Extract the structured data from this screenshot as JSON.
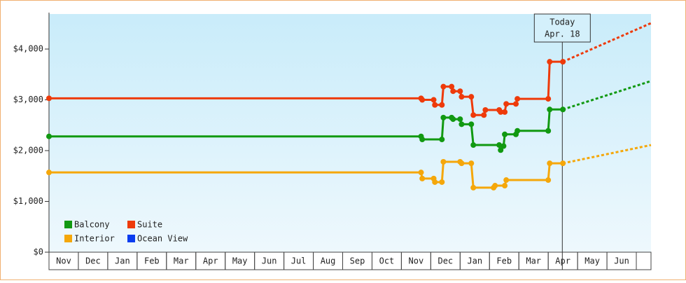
{
  "chart_data": {
    "type": "line",
    "ylim": [
      0,
      4690
    ],
    "yticks": [
      {
        "value": 0,
        "label": "$0"
      },
      {
        "value": 1000,
        "label": "$1,000"
      },
      {
        "value": 2000,
        "label": "$2,000"
      },
      {
        "value": 3000,
        "label": "$3,000"
      },
      {
        "value": 4000,
        "label": "$4,000"
      }
    ],
    "xlim": [
      0,
      20.5
    ],
    "xticks": [
      {
        "value": 0.5,
        "label": "Nov"
      },
      {
        "value": 1.5,
        "label": "Dec"
      },
      {
        "value": 2.5,
        "label": "Jan"
      },
      {
        "value": 3.5,
        "label": "Feb"
      },
      {
        "value": 4.5,
        "label": "Mar"
      },
      {
        "value": 5.5,
        "label": "Apr"
      },
      {
        "value": 6.5,
        "label": "May"
      },
      {
        "value": 7.5,
        "label": "Jun"
      },
      {
        "value": 8.5,
        "label": "Jul"
      },
      {
        "value": 9.5,
        "label": "Aug"
      },
      {
        "value": 10.5,
        "label": "Sep"
      },
      {
        "value": 11.5,
        "label": "Oct"
      },
      {
        "value": 12.5,
        "label": "Nov"
      },
      {
        "value": 13.5,
        "label": "Dec"
      },
      {
        "value": 14.5,
        "label": "Jan"
      },
      {
        "value": 15.5,
        "label": "Feb"
      },
      {
        "value": 16.5,
        "label": "Mar"
      },
      {
        "value": 17.5,
        "label": "Apr"
      },
      {
        "value": 18.5,
        "label": "May"
      },
      {
        "value": 19.5,
        "label": "Jun"
      }
    ],
    "annotation": {
      "lines": [
        "Today",
        "Apr. 18"
      ],
      "x": 17.48
    },
    "legend": "lower-left",
    "series": [
      {
        "name": "Balcony",
        "color": "#119911",
        "x": [
          0,
          12.67,
          12.71,
          13.38,
          13.43,
          13.71,
          13.76,
          14.0,
          14.05,
          14.38,
          14.45,
          15.33,
          15.38,
          15.48,
          15.52,
          15.9,
          15.95,
          17.0,
          17.05,
          17.5
        ],
        "values": [
          2280,
          2280,
          2220,
          2220,
          2650,
          2650,
          2620,
          2620,
          2520,
          2520,
          2110,
          2110,
          2010,
          2090,
          2320,
          2320,
          2390,
          2390,
          2810,
          2810
        ],
        "forecast": {
          "x": [
            17.5,
            20.5
          ],
          "values": [
            2810,
            3370
          ]
        }
      },
      {
        "name": "Suite",
        "color": "#ee3a0a",
        "x": [
          0,
          12.67,
          12.71,
          13.1,
          13.14,
          13.38,
          13.43,
          13.71,
          13.76,
          14.0,
          14.05,
          14.38,
          14.45,
          14.81,
          14.86,
          15.33,
          15.38,
          15.52,
          15.57,
          15.9,
          15.95,
          17.0,
          17.05,
          17.5
        ],
        "values": [
          3030,
          3030,
          3000,
          3000,
          2900,
          2900,
          3260,
          3260,
          3170,
          3170,
          3060,
          3060,
          2700,
          2700,
          2800,
          2800,
          2760,
          2760,
          2920,
          2920,
          3020,
          3020,
          3750,
          3750
        ],
        "forecast": {
          "x": [
            17.5,
            20.5
          ],
          "values": [
            3750,
            4510
          ]
        }
      },
      {
        "name": "Interior",
        "color": "#f5a70a",
        "x": [
          0,
          12.67,
          12.71,
          13.1,
          13.14,
          13.38,
          13.43,
          14.0,
          14.05,
          14.38,
          14.45,
          15.14,
          15.19,
          15.52,
          15.57,
          17.0,
          17.05,
          17.5
        ],
        "values": [
          1570,
          1570,
          1450,
          1450,
          1380,
          1380,
          1780,
          1780,
          1750,
          1750,
          1270,
          1270,
          1310,
          1310,
          1420,
          1420,
          1750,
          1750
        ],
        "forecast": {
          "x": [
            17.5,
            20.5
          ],
          "values": [
            1750,
            2110
          ]
        }
      },
      {
        "name": "Ocean View",
        "color": "#0a3cf0",
        "x": [],
        "values": []
      }
    ]
  }
}
